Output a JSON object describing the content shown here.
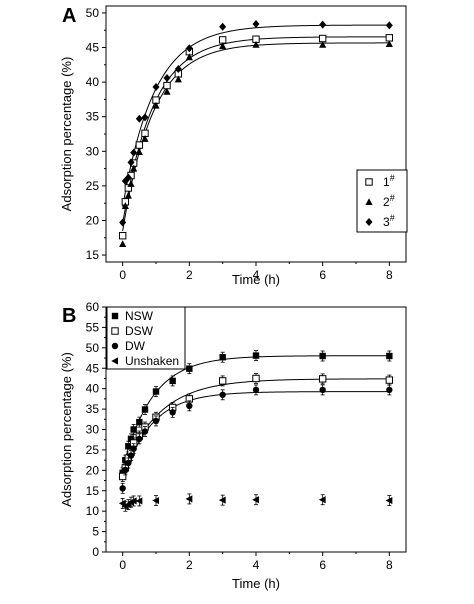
{
  "chart_data": [
    {
      "type": "scatter",
      "panel_label": "A",
      "xlabel": "Time (h)",
      "ylabel": "Adsorption percentage (%)",
      "xlim": [
        -0.5,
        8.5
      ],
      "ylim": [
        14,
        51
      ],
      "xticks": [
        0,
        2,
        4,
        6,
        8
      ],
      "yticks": [
        15,
        20,
        25,
        30,
        35,
        40,
        45,
        50
      ],
      "legend_position": "bottom-right",
      "series": [
        {
          "name": "1",
          "superscript": "#",
          "marker": "open-square",
          "x": [
            0,
            0.08,
            0.17,
            0.25,
            0.33,
            0.5,
            0.67,
            1,
            1.33,
            1.67,
            2,
            3,
            4,
            6,
            8
          ],
          "y": [
            17.8,
            22.7,
            24.7,
            26.5,
            28.3,
            30.9,
            32.6,
            37.4,
            39.5,
            41.2,
            44.4,
            46.1,
            46.2,
            46.3,
            46.4
          ]
        },
        {
          "name": "2",
          "superscript": "#",
          "marker": "filled-triangle",
          "x": [
            0,
            0.08,
            0.17,
            0.25,
            0.33,
            0.5,
            0.67,
            1,
            1.33,
            1.67,
            2,
            3,
            4,
            6,
            8
          ],
          "y": [
            16.6,
            22.1,
            23.6,
            25.3,
            27.5,
            29.9,
            31.8,
            36.6,
            38.6,
            40.4,
            43.6,
            45.2,
            45.4,
            45.4,
            45.5
          ]
        },
        {
          "name": "3",
          "superscript": "#",
          "marker": "filled-diamond",
          "x": [
            0,
            0.08,
            0.17,
            0.25,
            0.33,
            0.5,
            0.67,
            1,
            1.33,
            1.67,
            2,
            3,
            4,
            6,
            8
          ],
          "y": [
            19.7,
            25.7,
            26.2,
            28.4,
            29.8,
            34.7,
            34.9,
            39.3,
            40.6,
            41.9,
            44.9,
            48.0,
            48.4,
            48.3,
            48.2
          ]
        }
      ]
    },
    {
      "type": "scatter",
      "panel_label": "B",
      "xlabel": "Time (h)",
      "ylabel": "Adsorption percentage (%)",
      "xlim": [
        -0.5,
        8.5
      ],
      "ylim": [
        0,
        60
      ],
      "xticks": [
        0,
        2,
        4,
        6,
        8
      ],
      "yticks": [
        0,
        5,
        10,
        15,
        20,
        25,
        30,
        35,
        40,
        45,
        50,
        55,
        60
      ],
      "legend_position": "top-left",
      "series": [
        {
          "name": "NSW",
          "marker": "filled-square",
          "x": [
            0,
            0.08,
            0.17,
            0.25,
            0.33,
            0.5,
            0.67,
            1,
            1.5,
            2,
            3,
            4,
            6,
            8
          ],
          "y": [
            19.4,
            22.5,
            25.9,
            27.7,
            30.0,
            31.8,
            34.9,
            39.3,
            41.9,
            44.9,
            47.7,
            48.1,
            48.0,
            48.0
          ]
        },
        {
          "name": "DSW",
          "marker": "open-square",
          "x": [
            0,
            0.08,
            0.17,
            0.25,
            0.33,
            0.5,
            0.67,
            1,
            1.5,
            2,
            3,
            4,
            6,
            8
          ],
          "y": [
            18.5,
            20.6,
            23.0,
            24.4,
            26.7,
            28.4,
            30.6,
            33.0,
            35.4,
            37.5,
            41.9,
            42.5,
            42.4,
            42.1
          ]
        },
        {
          "name": "DW",
          "marker": "filled-circle",
          "x": [
            0,
            0.08,
            0.17,
            0.25,
            0.33,
            0.5,
            0.67,
            1,
            1.5,
            2,
            3,
            4,
            6,
            8
          ],
          "y": [
            15.6,
            20.1,
            21.8,
            23.6,
            25.3,
            27.7,
            29.5,
            32.1,
            34.2,
            35.8,
            38.5,
            39.7,
            39.7,
            39.7
          ]
        },
        {
          "name": "Unshaken",
          "marker": "filled-left-triangle",
          "x": [
            0,
            0.08,
            0.17,
            0.25,
            0.33,
            0.5,
            1,
            2,
            3,
            4,
            6,
            8
          ],
          "y": [
            11.9,
            11.2,
            11.6,
            12.2,
            12.5,
            12.5,
            12.6,
            13.0,
            12.7,
            12.8,
            12.8,
            12.6
          ]
        }
      ]
    }
  ]
}
